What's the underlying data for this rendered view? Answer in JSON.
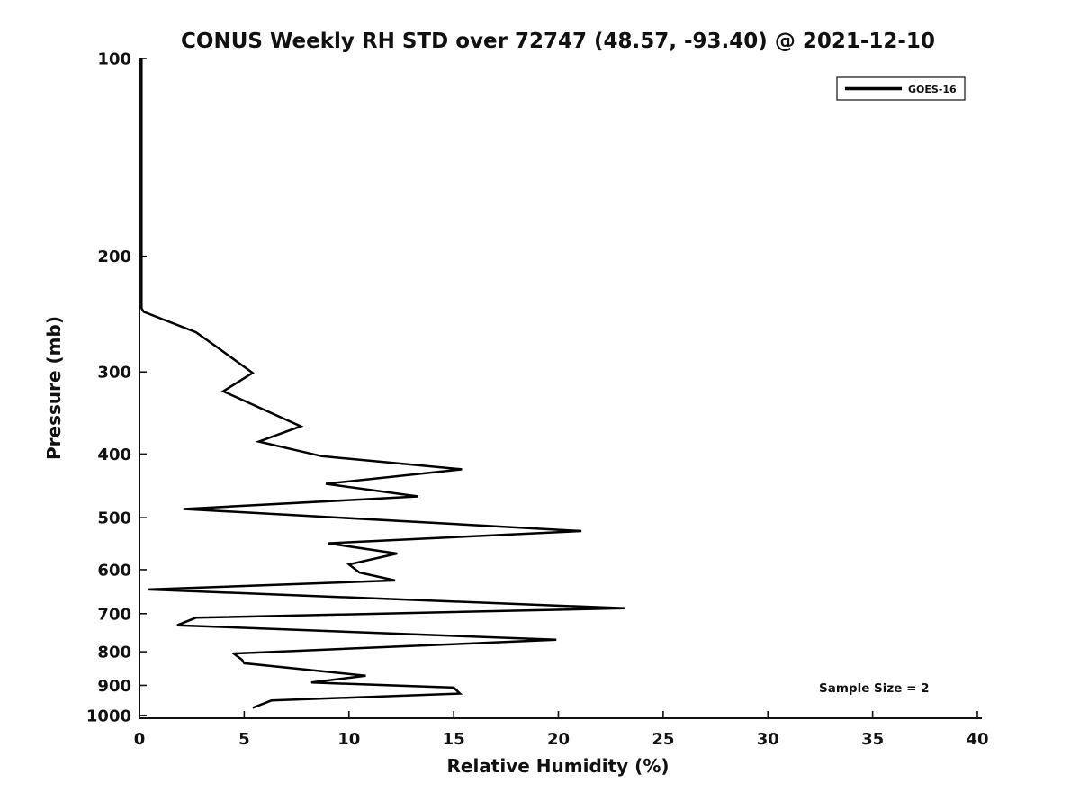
{
  "title": "CONUS Weekly RH STD over 72747 (48.57, -93.40) @ 2021-12-10",
  "annotation": "Sample Size = 2",
  "legend": {
    "label": "GOES-16",
    "position": "top-right",
    "line_color": "#000000"
  },
  "colors": {
    "line": "#000000",
    "axis": "#111111",
    "text": "#111111",
    "background": "#ffffff"
  },
  "chart_data": {
    "type": "line",
    "title": "CONUS Weekly RH STD over 72747 (48.57, -93.40) @ 2021-12-10",
    "xlabel": "Relative Humidity (%)",
    "ylabel": "Pressure (mb)",
    "xlim": [
      0,
      40
    ],
    "ylim": [
      100,
      1010
    ],
    "y_scale": "log",
    "y_axis_inverted": true,
    "grid": false,
    "legend_position": "top-right",
    "x_ticks": [
      0,
      5,
      10,
      15,
      20,
      25,
      30,
      35,
      40
    ],
    "y_ticks": [
      100,
      200,
      300,
      400,
      500,
      600,
      700,
      800,
      900,
      1000
    ],
    "series": [
      {
        "name": "GOES-16",
        "points_format": "[relative_humidity_pct, pressure_mb]",
        "points": [
          [
            0.1,
            100
          ],
          [
            0.1,
            240
          ],
          [
            0.2,
            243
          ],
          [
            2.7,
            261
          ],
          [
            3.7,
            275
          ],
          [
            5.4,
            301
          ],
          [
            4.0,
            321
          ],
          [
            7.7,
            363
          ],
          [
            5.7,
            383
          ],
          [
            8.7,
            403
          ],
          [
            15.4,
            422
          ],
          [
            8.9,
            444
          ],
          [
            13.3,
            464
          ],
          [
            2.1,
            485
          ],
          [
            21.1,
            524
          ],
          [
            9.0,
            547
          ],
          [
            12.3,
            567
          ],
          [
            10.0,
            589
          ],
          [
            10.5,
            606
          ],
          [
            12.2,
            623
          ],
          [
            0.4,
            643
          ],
          [
            23.2,
            687
          ],
          [
            2.7,
            710
          ],
          [
            1.8,
            729
          ],
          [
            19.9,
            767
          ],
          [
            4.5,
            805
          ],
          [
            4.9,
            823
          ],
          [
            5.0,
            833
          ],
          [
            10.8,
            870
          ],
          [
            8.2,
            891
          ],
          [
            15.0,
            907
          ],
          [
            15.3,
            926
          ],
          [
            6.3,
            949
          ],
          [
            5.4,
            974
          ]
        ]
      }
    ],
    "annotations": [
      {
        "text": "Sample Size = 2",
        "location": "lower-right"
      }
    ]
  }
}
